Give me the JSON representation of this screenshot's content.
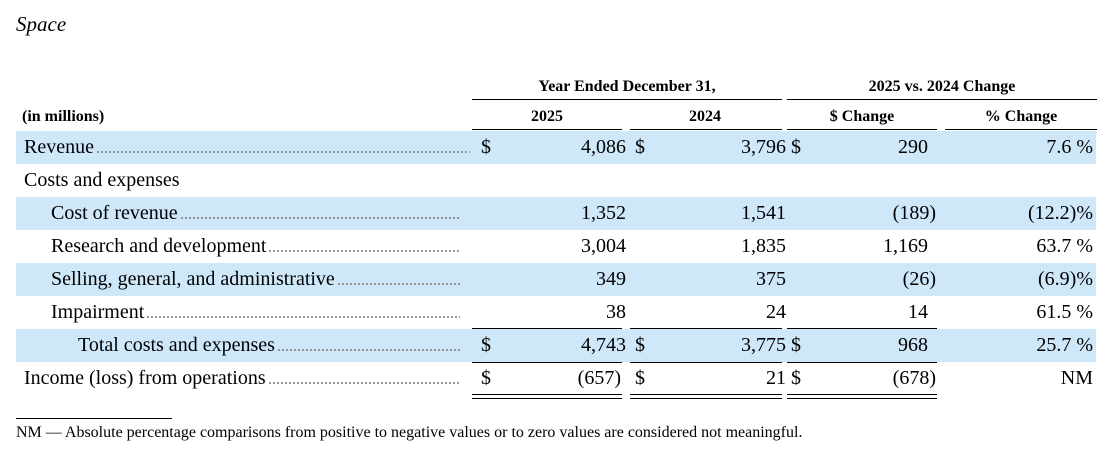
{
  "section_title": "Space",
  "header": {
    "group_year": "Year Ended December 31,",
    "group_change": "2025 vs. 2024 Change",
    "units": "(in millions)",
    "col_2025": "2025",
    "col_2024": "2024",
    "col_dollar_change": "$ Change",
    "col_pct_change": "% Change"
  },
  "rows": [
    {
      "label": "Revenue",
      "c1": "$",
      "v2025": "4,086",
      "c2": "$",
      "v2024": "3,796",
      "c3": "$",
      "dchg": "290",
      "pchg": "7.6 %"
    },
    {
      "label": "Costs and expenses"
    },
    {
      "label": "Cost of revenue",
      "v2025": "1,352",
      "v2024": "1,541",
      "dchg": "(189)",
      "pchg": "(12.2)%"
    },
    {
      "label": "Research and development",
      "v2025": "3,004",
      "v2024": "1,835",
      "dchg": "1,169",
      "pchg": "63.7 %"
    },
    {
      "label": "Selling, general, and administrative",
      "v2025": "349",
      "v2024": "375",
      "dchg": "(26)",
      "pchg": "(6.9)%"
    },
    {
      "label": "Impairment",
      "v2025": "38",
      "v2024": "24",
      "dchg": "14",
      "pchg": "61.5 %"
    },
    {
      "label": "Total costs and expenses",
      "c1": "$",
      "v2025": "4,743",
      "c2": "$",
      "v2024": "3,775",
      "c3": "$",
      "dchg": "968",
      "pchg": "25.7 %"
    },
    {
      "label": "Income (loss) from operations",
      "c1": "$",
      "v2025": "(657)",
      "c2": "$",
      "v2024": "21",
      "c3": "$",
      "dchg": "(678)",
      "pchg": "NM"
    }
  ],
  "footnote": "NM — Absolute percentage comparisons from positive to negative values or to zero values are considered not meaningful.",
  "colors": {
    "row_shade": "#cfe8f9"
  }
}
